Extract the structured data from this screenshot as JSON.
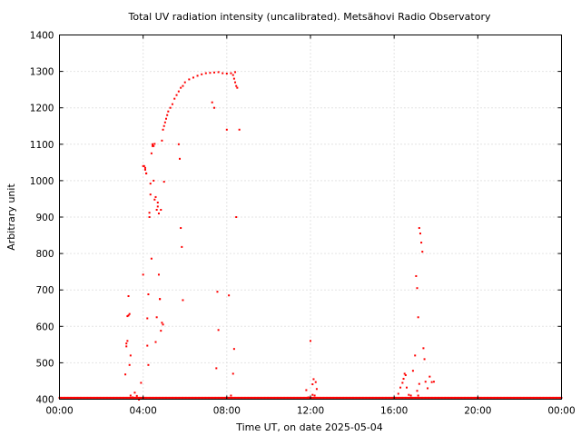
{
  "chart_data": {
    "type": "scatter",
    "title": "Total UV radiation intensity (uncalibrated). Metsähovi Radio Observatory",
    "xlabel": "Time UT, on date 2025-05-04",
    "ylabel": "Arbitrary unit",
    "xlim": [
      0,
      24
    ],
    "ylim": [
      400,
      1400
    ],
    "x_ticks": [
      {
        "value": 0,
        "label": "00:00"
      },
      {
        "value": 4,
        "label": "04:00"
      },
      {
        "value": 8,
        "label": "08:00"
      },
      {
        "value": 12,
        "label": "12:00"
      },
      {
        "value": 16,
        "label": "16:00"
      },
      {
        "value": 20,
        "label": "20:00"
      },
      {
        "value": 24,
        "label": "00:00"
      }
    ],
    "y_ticks": [
      400,
      500,
      600,
      700,
      800,
      900,
      1000,
      1100,
      1200,
      1300,
      1400
    ],
    "grid": true,
    "marker_color": "#ff0000",
    "series": [
      {
        "x": [
          3.15,
          3.2,
          3.25,
          3.3,
          3.35,
          3.4,
          3.5,
          3.6,
          3.7,
          3.8,
          3.9,
          4.0,
          4.05,
          4.1,
          4.15,
          4.2,
          4.25,
          4.3,
          4.35,
          4.4,
          4.45,
          4.5,
          4.55,
          4.6,
          4.65,
          4.7,
          4.75,
          4.8,
          4.85,
          4.9,
          4.95,
          5.0,
          5.05,
          5.1,
          5.15,
          5.2,
          5.3,
          5.4,
          5.5,
          5.6,
          5.7,
          5.8,
          5.9,
          6.0,
          6.2,
          6.4,
          6.6,
          6.8,
          7.0,
          7.2,
          7.4,
          7.6,
          7.8,
          8.0,
          8.2,
          8.3,
          8.35,
          8.4,
          8.45,
          8.5,
          8.6,
          3.2,
          3.25,
          3.3,
          3.35,
          3.4,
          3.9,
          4.0,
          4.1,
          4.15,
          4.2,
          4.25,
          4.3,
          4.35,
          4.4,
          4.45,
          4.5,
          4.55,
          4.6,
          4.65,
          4.7,
          4.75,
          4.8,
          4.85,
          4.9,
          4.95,
          5.0,
          5.7,
          5.75,
          5.8,
          5.85,
          5.9,
          7.3,
          7.4,
          7.5,
          7.55,
          7.6,
          8.0,
          8.1,
          8.2,
          8.3,
          8.35,
          8.4,
          8.45,
          11.8,
          11.9,
          12.0,
          12.1,
          12.2,
          12.3,
          12.1,
          12.15,
          12.25,
          16.2,
          16.3,
          16.4,
          16.45,
          16.5,
          16.55,
          16.6,
          16.7,
          16.8,
          16.9,
          17.0,
          17.05,
          17.1,
          17.15,
          17.2,
          17.25,
          17.3,
          17.35,
          17.4,
          17.45,
          17.5,
          17.6,
          17.7,
          17.8,
          17.9,
          17.1,
          17.15,
          17.2
        ],
        "y": [
          468,
          545,
          628,
          683,
          494,
          520,
          405,
          418,
          409,
          399,
          445,
          742,
          1040,
          1030,
          1020,
          547,
          494,
          912,
          992,
          786,
          1100,
          1095,
          1101,
          557,
          920,
          940,
          742,
          675,
          920,
          1110,
          1140,
          1150,
          1160,
          1170,
          1180,
          1190,
          1200,
          1210,
          1225,
          1235,
          1245,
          1255,
          1260,
          1270,
          1278,
          1283,
          1288,
          1292,
          1295,
          1296,
          1297,
          1298,
          1295,
          1294,
          1295,
          1290,
          1280,
          1270,
          1260,
          1255,
          1140,
          553,
          560,
          630,
          634,
          410,
          402,
          1040,
          1035,
          1020,
          622,
          688,
          900,
          962,
          1075,
          1095,
          1000,
          948,
          955,
          625,
          929,
          910,
          675,
          588,
          610,
          605,
          997,
          1100,
          1060,
          870,
          818,
          672,
          1215,
          1200,
          485,
          695,
          590,
          1140,
          685,
          410,
          470,
          538,
          1298,
          900,
          425,
          405,
          560,
          412,
          410,
          428,
          441,
          455,
          447,
          415,
          432,
          445,
          456,
          470,
          466,
          432,
          412,
          410,
          478,
          520,
          738,
          705,
          625,
          870,
          855,
          830,
          805,
          540,
          510,
          448,
          430,
          462,
          447,
          448,
          423,
          410,
          442
        ],
        "baseline": 404,
        "baseline_x": [
          0,
          24
        ]
      }
    ]
  }
}
